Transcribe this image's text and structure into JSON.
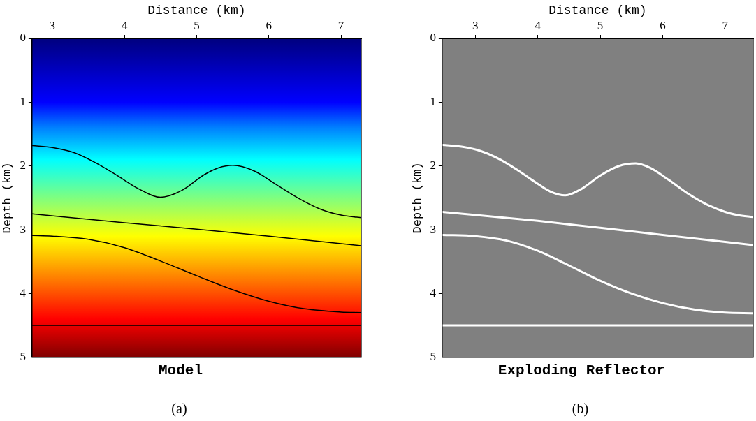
{
  "chart_data": [
    {
      "type": "line",
      "title": "Model",
      "xlabel": "Distance (km)",
      "ylabel": "Depth (km)",
      "annotations": [
        "(a)"
      ],
      "xlim": [
        2.72,
        7.28
      ],
      "xticks": [
        3,
        4,
        5,
        6,
        7
      ],
      "ylim": [
        5,
        0
      ],
      "yticks": [
        0,
        1,
        2,
        3,
        4,
        5
      ],
      "marker": "none",
      "line_style": "solid",
      "series": [
        {
          "color": "#000000",
          "x": [
            2.72,
            3.0,
            3.3,
            3.6,
            3.9,
            4.2,
            4.5,
            4.8,
            5.1,
            5.3,
            5.5,
            5.8,
            6.1,
            6.4,
            6.7,
            7.0,
            7.28
          ],
          "values": [
            1.68,
            1.71,
            1.79,
            1.95,
            2.15,
            2.36,
            2.49,
            2.38,
            2.14,
            2.03,
            1.99,
            2.08,
            2.29,
            2.5,
            2.67,
            2.77,
            2.81
          ]
        },
        {
          "color": "#000000",
          "x": [
            2.72,
            4.0,
            5.0,
            6.0,
            7.28
          ],
          "values": [
            2.75,
            2.89,
            2.99,
            3.1,
            3.25
          ]
        },
        {
          "color": "#000000",
          "x": [
            2.72,
            3.0,
            3.5,
            4.0,
            4.5,
            5.0,
            5.5,
            6.0,
            6.5,
            7.0,
            7.28
          ],
          "values": [
            3.09,
            3.1,
            3.15,
            3.28,
            3.49,
            3.72,
            3.94,
            4.12,
            4.24,
            4.29,
            4.3
          ]
        },
        {
          "color": "#000000",
          "x": [
            2.72,
            7.28
          ],
          "values": [
            4.5,
            4.5
          ]
        }
      ]
    },
    {
      "type": "line",
      "title": "Exploding Reflector",
      "xlabel": "Distance (km)",
      "ylabel": "Depth (km)",
      "annotations": [
        "(b)"
      ],
      "xlim": [
        2.47,
        7.45
      ],
      "xticks": [
        3,
        4,
        5,
        6,
        7
      ],
      "ylim": [
        5,
        0
      ],
      "yticks": [
        0,
        1,
        2,
        3,
        4,
        5
      ],
      "marker": "none",
      "line_style": "solid",
      "series": [
        {
          "color": "#ffffff",
          "x": [
            2.47,
            2.8,
            3.1,
            3.4,
            3.7,
            4.0,
            4.2,
            4.44,
            4.7,
            5.0,
            5.3,
            5.57,
            5.8,
            6.1,
            6.4,
            6.7,
            7.0,
            7.2,
            7.45
          ],
          "values": [
            1.67,
            1.7,
            1.77,
            1.9,
            2.08,
            2.28,
            2.4,
            2.46,
            2.36,
            2.15,
            2.0,
            1.96,
            2.03,
            2.22,
            2.43,
            2.6,
            2.72,
            2.77,
            2.8
          ]
        },
        {
          "color": "#ffffff",
          "x": [
            2.47,
            4.0,
            5.0,
            6.0,
            7.45
          ],
          "values": [
            2.72,
            2.86,
            2.97,
            3.08,
            3.24
          ]
        },
        {
          "color": "#ffffff",
          "x": [
            2.47,
            3.0,
            3.5,
            4.0,
            4.5,
            5.0,
            5.5,
            6.0,
            6.5,
            7.0,
            7.45
          ],
          "values": [
            3.08,
            3.1,
            3.17,
            3.33,
            3.56,
            3.8,
            4.0,
            4.15,
            4.25,
            4.3,
            4.31
          ]
        },
        {
          "color": "#ffffff",
          "x": [
            2.47,
            7.45
          ],
          "values": [
            4.5,
            4.5
          ]
        }
      ]
    }
  ]
}
